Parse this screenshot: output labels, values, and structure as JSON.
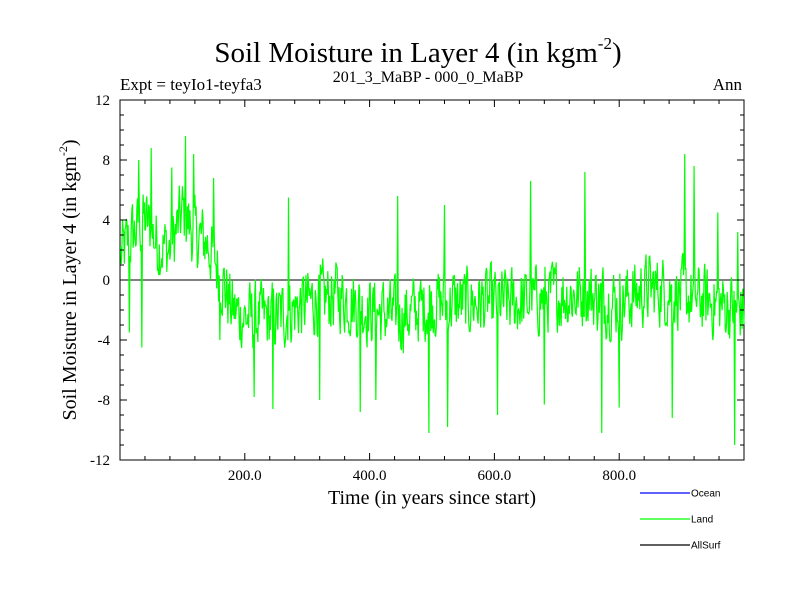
{
  "chart_data": {
    "type": "line",
    "title": "Soil Moisture in Layer 4 (in kgm",
    "title_superscript": "-2",
    "title_close": ")",
    "subtitle_left": "Expt = teyIo1-teyfa3",
    "subtitle_center": "201_3_MaBP - 000_0_MaBP",
    "subtitle_right": "Ann",
    "xlabel": "Time (in years since start)",
    "ylabel": "Soil Moisture in Layer 4 (in kgm",
    "ylabel_superscript": "-2",
    "ylabel_close": ")",
    "xlim": [
      0,
      1000
    ],
    "ylim": [
      -12,
      12
    ],
    "x_ticks": [
      200,
      400,
      600,
      800
    ],
    "x_tick_labels": [
      "200.0",
      "400.0",
      "600.0",
      "800.0"
    ],
    "y_ticks": [
      -12,
      -8,
      -4,
      0,
      4,
      8,
      12
    ],
    "y_tick_labels": [
      "-12",
      "-8",
      "-4",
      "0",
      "4",
      "8",
      "12"
    ],
    "zero_line": 0,
    "legend_position": "bottom-right",
    "legend": [
      {
        "name": "Ocean",
        "color": "#0000ff"
      },
      {
        "name": "Land",
        "color": "#00ff00"
      },
      {
        "name": "AllSurf",
        "color": "#000000"
      }
    ],
    "series": [
      {
        "name": "Land",
        "color": "#00ff00",
        "x_start": 1,
        "x_step": 1,
        "description": "Annual land soil moisture anomaly, 1000 years; positive (about +2 to +4) during first ~160 years with peaks near 9.6 around year 105, then fluctuating mostly between -6 and +2, minimum about -11 near year 990",
        "anchors": [
          [
            0,
            1.5
          ],
          [
            20,
            3.0
          ],
          [
            40,
            4.0
          ],
          [
            60,
            2.5
          ],
          [
            80,
            2.0
          ],
          [
            100,
            4.5
          ],
          [
            120,
            3.0
          ],
          [
            140,
            2.5
          ],
          [
            160,
            0.5
          ],
          [
            180,
            -2.0
          ],
          [
            200,
            -2.5
          ],
          [
            250,
            -2.5
          ],
          [
            300,
            -1.5
          ],
          [
            350,
            -1.0
          ],
          [
            400,
            -2.0
          ],
          [
            450,
            -2.5
          ],
          [
            500,
            -1.5
          ],
          [
            550,
            -1.5
          ],
          [
            600,
            -1.5
          ],
          [
            650,
            -1.5
          ],
          [
            700,
            -1.0
          ],
          [
            750,
            -1.0
          ],
          [
            800,
            -1.5
          ],
          [
            850,
            -0.5
          ],
          [
            900,
            -1.0
          ],
          [
            950,
            -1.5
          ],
          [
            1000,
            -2.0
          ]
        ],
        "peaks": [
          [
            30,
            8.0
          ],
          [
            50,
            8.8
          ],
          [
            83,
            7.5
          ],
          [
            105,
            9.6
          ],
          [
            118,
            8.4
          ],
          [
            150,
            6.8
          ],
          [
            270,
            5.5
          ],
          [
            445,
            5.6
          ],
          [
            520,
            5.0
          ],
          [
            658,
            6.6
          ],
          [
            745,
            7.2
          ],
          [
            905,
            8.4
          ],
          [
            920,
            7.6
          ],
          [
            958,
            4.5
          ],
          [
            990,
            3.2
          ]
        ],
        "troughs": [
          [
            15,
            -3.5
          ],
          [
            35,
            -4.5
          ],
          [
            160,
            -4.0
          ],
          [
            215,
            -7.8
          ],
          [
            245,
            -8.6
          ],
          [
            320,
            -8.0
          ],
          [
            385,
            -8.8
          ],
          [
            410,
            -8.0
          ],
          [
            495,
            -10.2
          ],
          [
            525,
            -9.8
          ],
          [
            605,
            -9.0
          ],
          [
            680,
            -8.3
          ],
          [
            772,
            -10.2
          ],
          [
            800,
            -8.5
          ],
          [
            885,
            -9.2
          ],
          [
            985,
            -11.0
          ]
        ]
      }
    ]
  }
}
